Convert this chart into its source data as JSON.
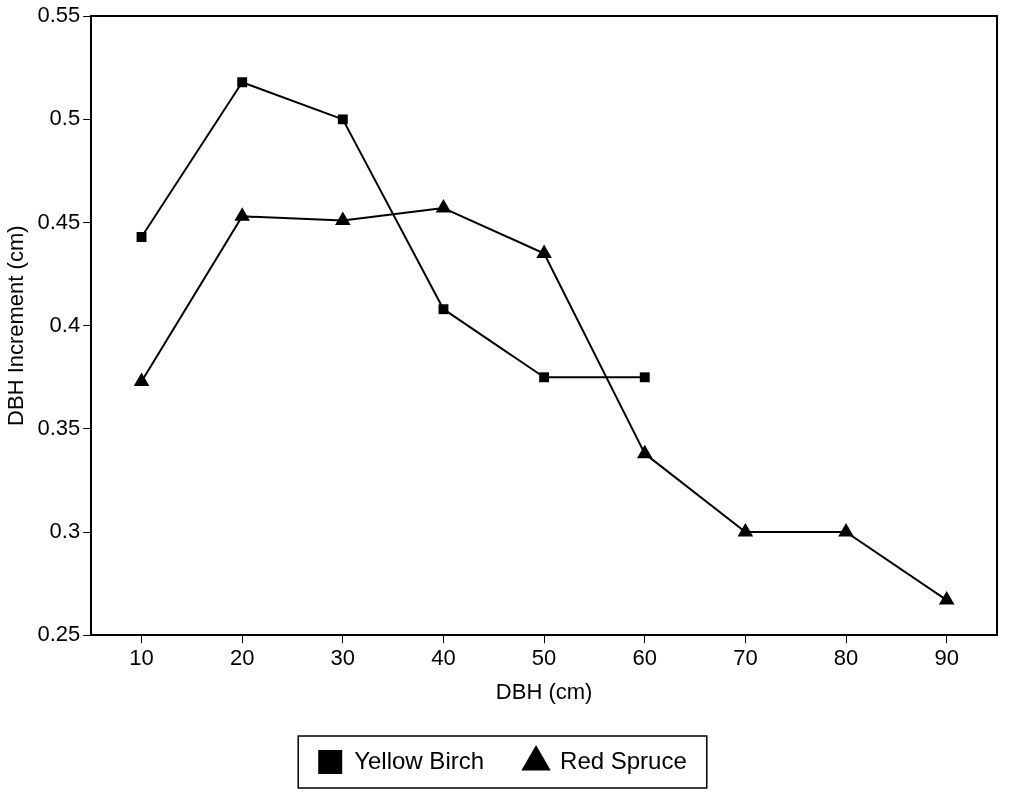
{
  "chart_data": {
    "type": "line",
    "xlabel": "DBH (cm)",
    "ylabel": "DBH Increment (cm)",
    "xlim": [
      5,
      95
    ],
    "xticks": [
      10,
      20,
      30,
      40,
      50,
      60,
      70,
      80,
      90
    ],
    "ylim": [
      0.25,
      0.55
    ],
    "yticks": [
      0.25,
      0.3,
      0.35,
      0.4,
      0.45,
      0.5,
      0.55
    ],
    "grid": false,
    "legend": "bottom",
    "series": [
      {
        "name": "Yellow Birch",
        "color": "#000000",
        "marker": "square",
        "x": [
          10,
          20,
          30,
          40,
          50,
          60
        ],
        "values": [
          0.443,
          0.518,
          0.5,
          0.408,
          0.375,
          0.375
        ]
      },
      {
        "name": "Red Spruce",
        "color": "#000000",
        "marker": "triangle",
        "x": [
          10,
          20,
          30,
          40,
          50,
          60,
          70,
          80,
          90
        ],
        "values": [
          0.373,
          0.453,
          0.451,
          0.457,
          0.435,
          0.338,
          0.3,
          0.3,
          0.267
        ]
      }
    ]
  }
}
